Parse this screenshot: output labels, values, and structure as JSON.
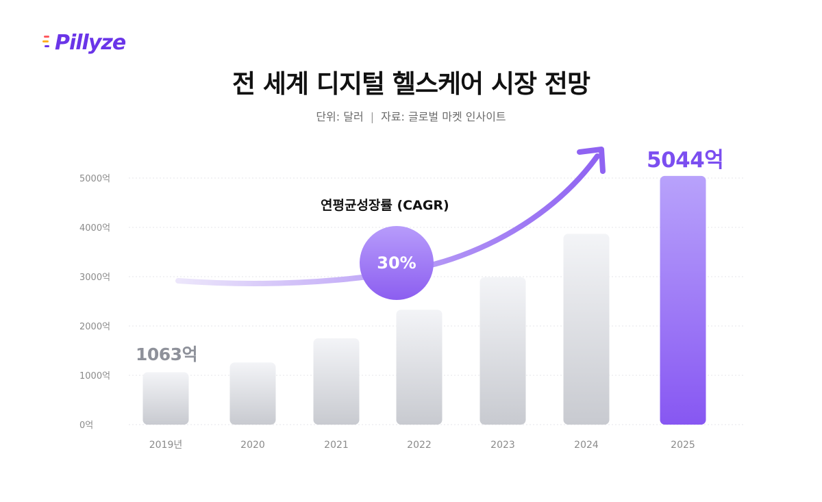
{
  "brand": {
    "logo_text": "Pillyze",
    "accent": "#6a35e8"
  },
  "header": {
    "title": "전 세계 디지털 헬스케어 시장 전망",
    "unit": "단위: 달러",
    "separator": "|",
    "source": "자료: 글로벌 마켓 인사이트"
  },
  "annotations": {
    "cagr_label": "연평균성장률 (CAGR)",
    "cagr_value": "30%",
    "first_value_label": "1063억",
    "last_value_label": "5044억"
  },
  "chart_data": {
    "type": "bar",
    "title": "전 세계 디지털 헬스케어 시장 전망",
    "categories": [
      "2019년",
      "2020",
      "2021",
      "2022",
      "2023",
      "2024",
      "2025"
    ],
    "series": [
      {
        "values": [
          1063,
          1260,
          1750,
          2330,
          2990,
          3870,
          5044
        ]
      }
    ],
    "ylim": [
      0,
      5000
    ],
    "yticks": [
      {
        "value": 0,
        "label": "0억"
      },
      {
        "value": 1000,
        "label": "1000억"
      },
      {
        "value": 2000,
        "label": "2000억"
      },
      {
        "value": 3000,
        "label": "3000억"
      },
      {
        "value": 4000,
        "label": "4000억"
      },
      {
        "value": 5000,
        "label": "5000억"
      }
    ],
    "grid": true,
    "highlight_index": 6,
    "colors": {
      "bar_top": "#f3f4f7",
      "bar_bottom": "#c8cad0",
      "highlight_top": "#b8a2fb",
      "highlight_bottom": "#8757f2",
      "grid": "#e4e4e8",
      "arrow_start": "#ece6fb",
      "arrow_end": "#8f63f2"
    }
  }
}
